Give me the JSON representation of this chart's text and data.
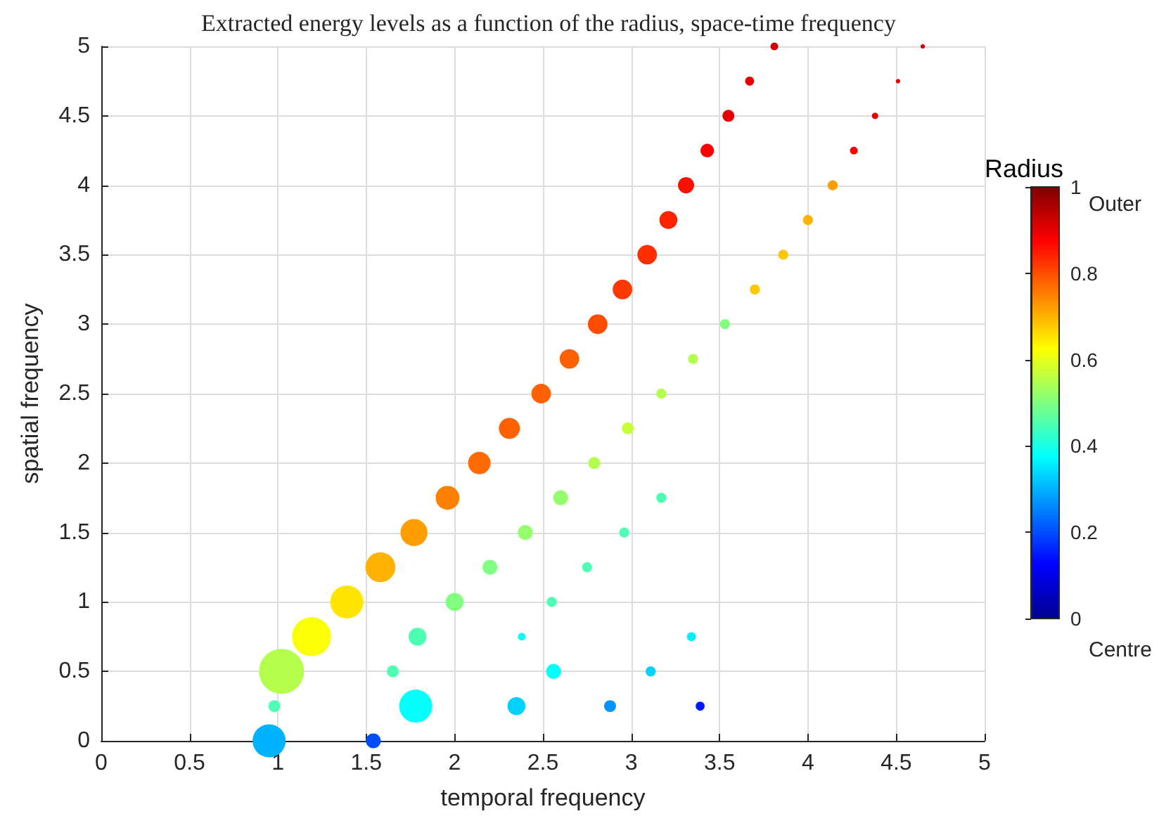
{
  "chart_data": {
    "type": "bubble",
    "title": "Extracted energy levels as a function of the radius, space-time frequency",
    "xlabel": "temporal frequency",
    "ylabel": "spatial frequency",
    "clabel": "Radius",
    "annotations": [
      "Outer",
      "Centre"
    ],
    "x": [
      0.95,
      1.54,
      0.98,
      1.02,
      1.78,
      2.35,
      2.88,
      3.39,
      1.65,
      2.56,
      3.11,
      1.19,
      1.79,
      2.38,
      3.34,
      1.39,
      2.0,
      2.55,
      1.58,
      2.2,
      2.75,
      1.77,
      2.4,
      2.96,
      1.96,
      2.6,
      3.17,
      2.14,
      2.79,
      2.31,
      2.98,
      2.49,
      3.17,
      2.65,
      3.35,
      2.81,
      3.53,
      2.95,
      3.7,
      3.09,
      3.86,
      3.21,
      4.0,
      3.31,
      4.14,
      3.43,
      4.26,
      3.55,
      4.38,
      3.67,
      4.51,
      3.81,
      4.65
    ],
    "values": [
      0,
      0,
      0.25,
      0.5,
      0.25,
      0.25,
      0.25,
      0.25,
      0.5,
      0.5,
      0.5,
      0.75,
      0.75,
      0.75,
      0.75,
      1,
      1,
      1,
      1.25,
      1.25,
      1.25,
      1.5,
      1.5,
      1.5,
      1.75,
      1.75,
      1.75,
      2,
      2,
      2.25,
      2.25,
      2.5,
      2.5,
      2.75,
      2.75,
      3,
      3,
      3.25,
      3.25,
      3.5,
      3.5,
      3.75,
      3.75,
      4,
      4,
      4.25,
      4.25,
      4.5,
      4.5,
      4.75,
      4.75,
      5,
      5
    ],
    "sizes": [
      0.54,
      0.11,
      0.07,
      1,
      0.54,
      0.16,
      0.07,
      0.04,
      0.07,
      0.11,
      0.05,
      0.75,
      0.16,
      0.03,
      0.04,
      0.54,
      0.16,
      0.05,
      0.44,
      0.11,
      0.05,
      0.36,
      0.11,
      0.05,
      0.28,
      0.11,
      0.05,
      0.25,
      0.07,
      0.22,
      0.07,
      0.19,
      0.05,
      0.19,
      0.05,
      0.19,
      0.05,
      0.19,
      0.05,
      0.19,
      0.05,
      0.16,
      0.05,
      0.13,
      0.05,
      0.09,
      0.03,
      0.07,
      0.02,
      0.04,
      0.01,
      0.03,
      0.01
    ],
    "cvalues": [
      0.3,
      0.2,
      0.45,
      0.55,
      0.38,
      0.33,
      0.27,
      0.15,
      0.45,
      0.38,
      0.33,
      0.62,
      0.45,
      0.38,
      0.36,
      0.65,
      0.5,
      0.45,
      0.7,
      0.5,
      0.45,
      0.72,
      0.52,
      0.45,
      0.75,
      0.52,
      0.45,
      0.77,
      0.55,
      0.78,
      0.57,
      0.78,
      0.55,
      0.78,
      0.55,
      0.8,
      0.5,
      0.82,
      0.68,
      0.83,
      0.68,
      0.84,
      0.7,
      0.86,
      0.72,
      0.88,
      0.88,
      0.9,
      0.9,
      0.9,
      0.9,
      0.92,
      0.92
    ],
    "clim": [
      0,
      1
    ],
    "cticks": [
      0,
      0.2,
      0.4,
      0.6,
      0.8,
      1
    ],
    "xlim": [
      0,
      5
    ],
    "xticks": [
      0,
      0.5,
      1,
      1.5,
      2,
      2.5,
      3,
      3.5,
      4,
      4.5,
      5
    ],
    "ylim": [
      0,
      5
    ],
    "yticks": [
      0,
      0.5,
      1,
      1.5,
      2,
      2.5,
      3,
      3.5,
      4,
      4.5,
      5
    ],
    "grid": true,
    "marker": "circle"
  }
}
